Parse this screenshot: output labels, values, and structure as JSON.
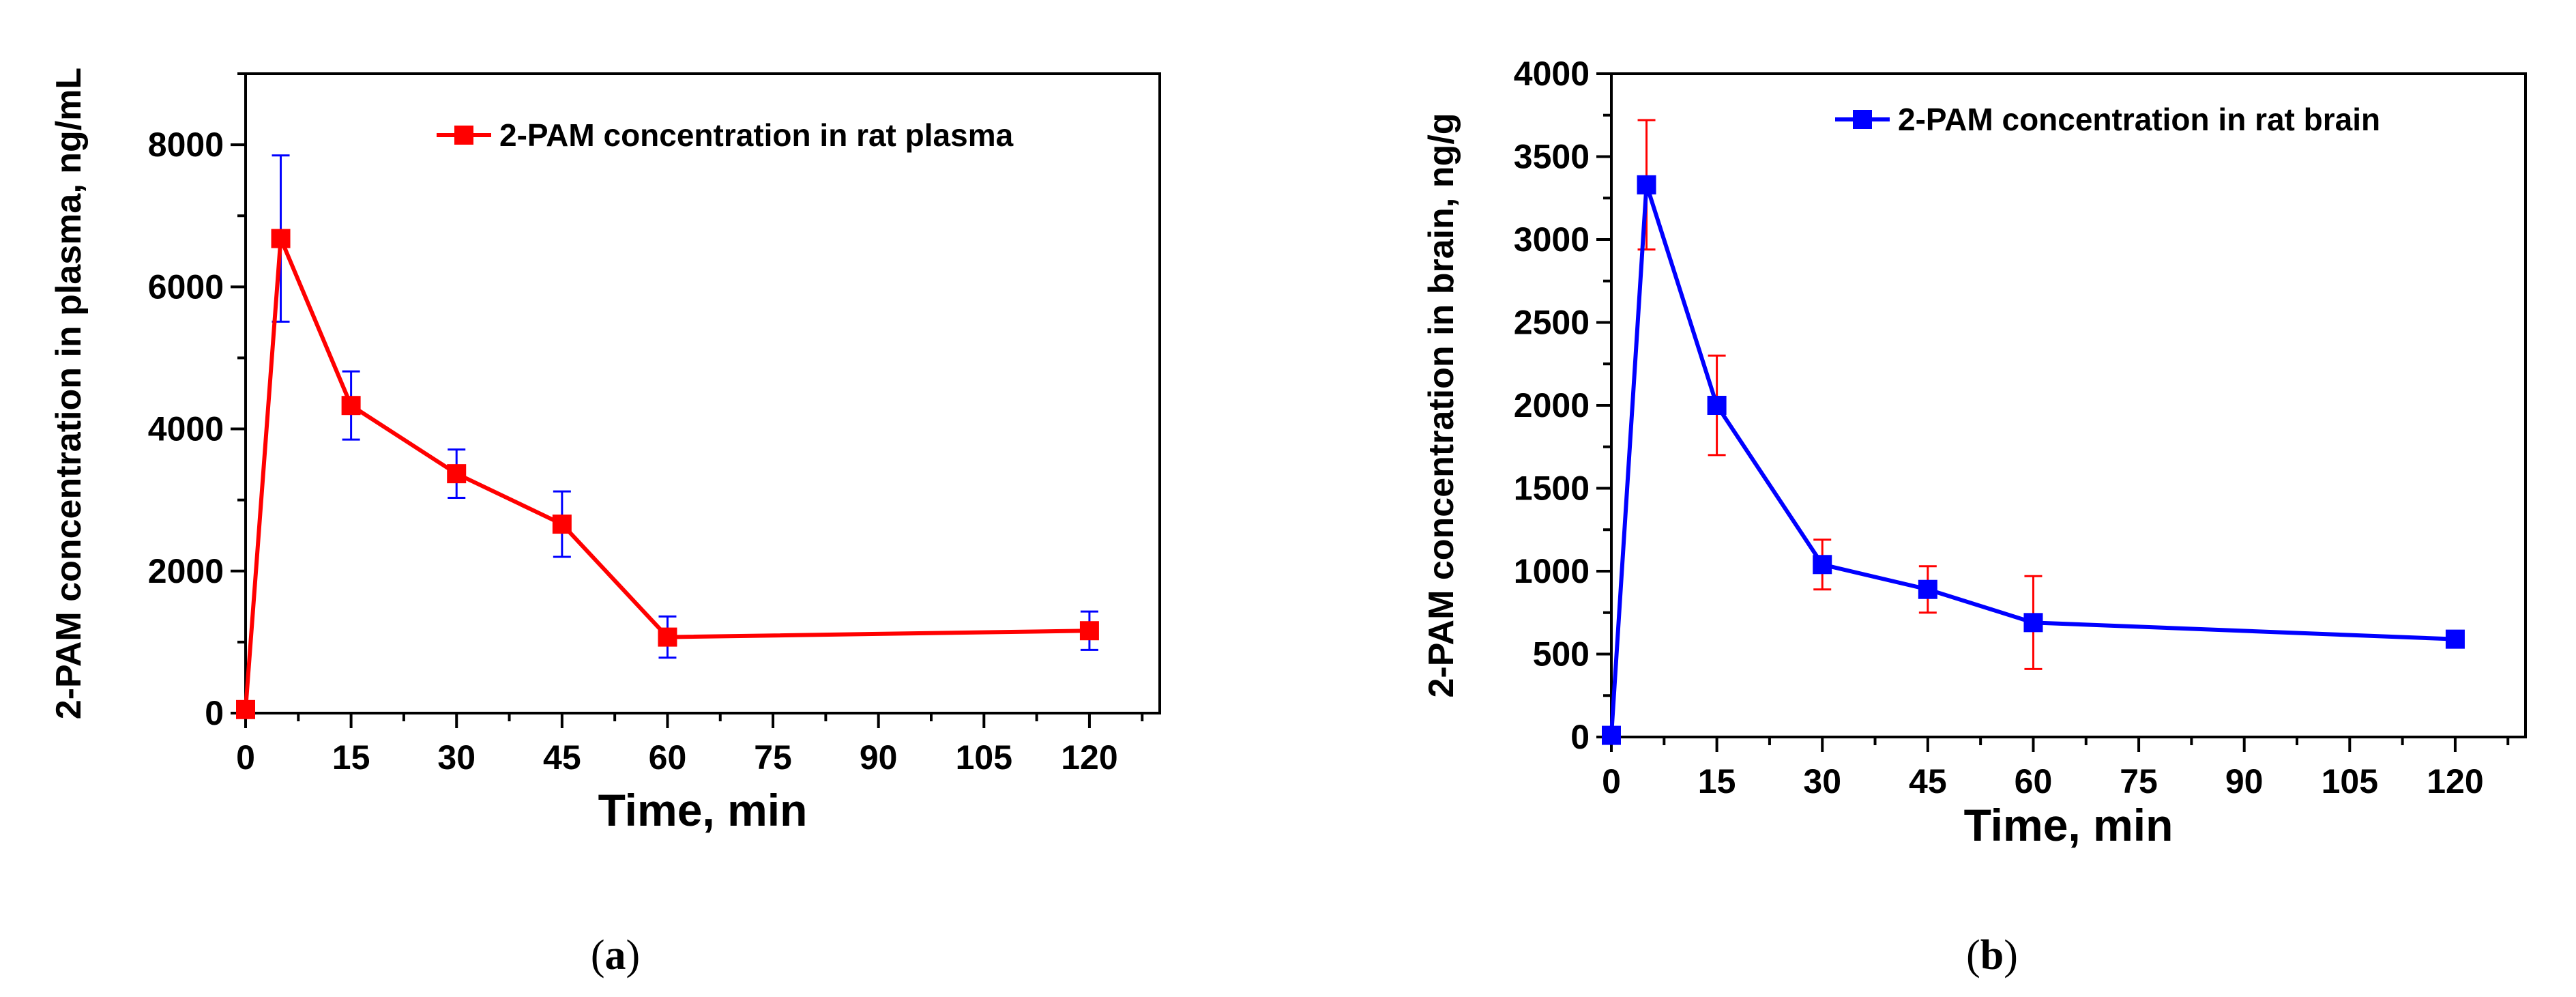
{
  "chart_data": [
    {
      "type": "line",
      "panel_label": "(a)",
      "panel_letter": "a",
      "xlabel": "Time, min",
      "ylabel": "2-PAM concentration in plasma, ng/mL",
      "xlim": [
        0,
        130
      ],
      "ylim": [
        0,
        9000
      ],
      "xticks": [
        0,
        15,
        30,
        45,
        60,
        75,
        90,
        105,
        120
      ],
      "yticks": [
        0,
        2000,
        4000,
        6000,
        8000
      ],
      "minor_xticks": [
        7.5,
        22.5,
        37.5,
        52.5,
        67.5,
        82.5,
        97.5,
        112.5,
        127.5
      ],
      "minor_yticks": [
        1000,
        3000,
        5000,
        7000,
        9000
      ],
      "legend_position": "top-right",
      "line_color": "#ff0000",
      "marker_color": "#ff0000",
      "errorbar_color": "#0000ff",
      "series": [
        {
          "name": "2-PAM concentration in rat plasma",
          "x": [
            0,
            5,
            15,
            30,
            45,
            60,
            120
          ],
          "y": [
            50,
            6680,
            4330,
            3370,
            2660,
            1070,
            1160
          ],
          "err": [
            0,
            1170,
            480,
            340,
            460,
            290,
            270
          ]
        }
      ]
    },
    {
      "type": "line",
      "panel_label": "(b)",
      "panel_letter": "b",
      "xlabel": "Time, min",
      "ylabel": "2-PAM concentration in brain, ng/g",
      "xlim": [
        0,
        130
      ],
      "ylim": [
        0,
        4000
      ],
      "xticks": [
        0,
        15,
        30,
        45,
        60,
        75,
        90,
        105,
        120
      ],
      "yticks": [
        0,
        500,
        1000,
        1500,
        2000,
        2500,
        3000,
        3500,
        4000
      ],
      "minor_xticks": [
        7.5,
        22.5,
        37.5,
        52.5,
        67.5,
        82.5,
        97.5,
        112.5,
        127.5
      ],
      "minor_yticks": [
        250,
        750,
        1250,
        1750,
        2250,
        2750,
        3250,
        3750
      ],
      "legend_position": "top-right",
      "line_color": "#0000ff",
      "marker_color": "#0000ff",
      "errorbar_color": "#ff0000",
      "series": [
        {
          "name": "2-PAM concentration in rat brain",
          "x": [
            0,
            5,
            15,
            30,
            45,
            60,
            120
          ],
          "y": [
            10,
            3330,
            2000,
            1040,
            890,
            690,
            590
          ],
          "err": [
            0,
            390,
            300,
            150,
            140,
            280,
            30
          ]
        }
      ]
    }
  ]
}
